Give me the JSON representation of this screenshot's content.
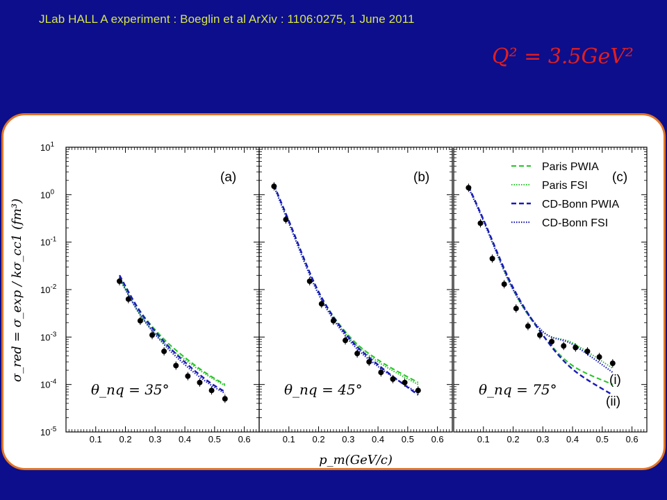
{
  "header": {
    "citation": "JLab HALL A experiment :  Boeglin et al  ArXiv : 1106:0275,    1  June  2011",
    "q2_label": "Q² = 3.5GeV²"
  },
  "colors": {
    "background": "#0c0e8c",
    "header_text": "#d7e64a",
    "q2_text": "#e21e1e",
    "card_border": "#e27427",
    "paris": "#22c322",
    "cdbonn": "#1a1ab8",
    "data": "#000000"
  },
  "chart_data": {
    "type": "scatter",
    "ylabel": "σ_red = σ_exp / kσ_cc1 (fm³)",
    "xlabel": "p_m(GeV/c)",
    "yscale": "log",
    "ylim": [
      1e-05,
      10
    ],
    "y_tick_labels": [
      "10^1",
      "10^0",
      "10^-1",
      "10^-2",
      "10^-3",
      "10^-4",
      "10^-5"
    ],
    "x_tick_labels": [
      "0.1",
      "0.2",
      "0.3",
      "0.4",
      "0.5",
      "0.6"
    ],
    "xlim": [
      0,
      0.65
    ],
    "legend": {
      "placement": "top-right",
      "entries": [
        "Paris PWIA",
        "Paris FSI",
        "CD-Bonn PWIA",
        "CD-Bonn FSI"
      ]
    },
    "panels": [
      {
        "id": "(a)",
        "theta_label": "θ_nq = 35°",
        "data_x": [
          0.18,
          0.21,
          0.25,
          0.29,
          0.33,
          0.37,
          0.41,
          0.45,
          0.49,
          0.535
        ],
        "data_y": [
          0.015,
          0.0063,
          0.0022,
          0.0011,
          0.0005,
          0.00025,
          0.00015,
          0.00011,
          7.5e-05,
          5e-05
        ],
        "curves": {
          "Paris PWIA": {
            "x": [
              0.18,
              0.25,
              0.33,
              0.41,
              0.48,
              0.535
            ],
            "y": [
              0.02,
              0.0035,
              0.0009,
              0.00033,
              0.00016,
              0.0001
            ]
          },
          "Paris FSI": {
            "x": [
              0.18,
              0.25,
              0.33,
              0.41,
              0.48,
              0.535
            ],
            "y": [
              0.018,
              0.003,
              0.00075,
              0.0003,
              0.00015,
              9.5e-05
            ]
          },
          "CD-Bonn PWIA": {
            "x": [
              0.18,
              0.25,
              0.33,
              0.41,
              0.48,
              0.535
            ],
            "y": [
              0.02,
              0.0034,
              0.0008,
              0.00026,
              0.000115,
              7e-05
            ]
          },
          "CD-Bonn FSI": {
            "x": [
              0.18,
              0.25,
              0.33,
              0.41,
              0.48,
              0.535
            ],
            "y": [
              0.017,
              0.0029,
              0.0007,
              0.00023,
              0.000105,
              6.5e-05
            ]
          }
        }
      },
      {
        "id": "(b)",
        "theta_label": "θ_nq = 45°",
        "data_x": [
          0.05,
          0.09,
          0.17,
          0.21,
          0.25,
          0.29,
          0.33,
          0.37,
          0.41,
          0.45,
          0.49,
          0.535
        ],
        "data_y": [
          1.5,
          0.3,
          0.015,
          0.005,
          0.0022,
          0.00085,
          0.00045,
          0.0003,
          0.00018,
          0.00013,
          0.00011,
          7.5e-05
        ],
        "curves": {
          "Paris PWIA": {
            "x": [
              0.05,
              0.1,
              0.2,
              0.3,
              0.4,
              0.535
            ],
            "y": [
              1.6,
              0.28,
              0.009,
              0.0011,
              0.00033,
              0.00011
            ]
          },
          "Paris FSI": {
            "x": [
              0.05,
              0.1,
              0.2,
              0.3,
              0.4,
              0.535
            ],
            "y": [
              1.5,
              0.25,
              0.008,
              0.001,
              0.0003,
              0.0001
            ]
          },
          "CD-Bonn PWIA": {
            "x": [
              0.05,
              0.1,
              0.2,
              0.3,
              0.4,
              0.535
            ],
            "y": [
              1.6,
              0.28,
              0.009,
              0.001,
              0.00026,
              6e-05
            ]
          },
          "CD-Bonn FSI": {
            "x": [
              0.05,
              0.1,
              0.2,
              0.3,
              0.4,
              0.535
            ],
            "y": [
              1.5,
              0.25,
              0.008,
              0.0009,
              0.00024,
              6.5e-05
            ]
          }
        }
      },
      {
        "id": "(c)",
        "theta_label": "θ_nq = 75°",
        "curve_labels": [
          "(i)",
          "(ii)"
        ],
        "data_x": [
          0.05,
          0.09,
          0.13,
          0.17,
          0.21,
          0.25,
          0.29,
          0.33,
          0.37,
          0.41,
          0.45,
          0.49,
          0.535
        ],
        "data_y": [
          1.4,
          0.25,
          0.045,
          0.013,
          0.004,
          0.0017,
          0.0011,
          0.0008,
          0.00065,
          0.0006,
          0.0005,
          0.00038,
          0.00028
        ],
        "curves": {
          "Paris PWIA": {
            "x": [
              0.05,
              0.1,
              0.2,
              0.3,
              0.4,
              0.535
            ],
            "y": [
              1.5,
              0.3,
              0.01,
              0.0011,
              0.00025,
              0.0001
            ]
          },
          "Paris FSI": {
            "x": [
              0.05,
              0.1,
              0.2,
              0.3,
              0.4,
              0.535
            ],
            "y": [
              1.4,
              0.28,
              0.01,
              0.0013,
              0.00075,
              0.00022
            ]
          },
          "CD-Bonn PWIA": {
            "x": [
              0.05,
              0.1,
              0.2,
              0.3,
              0.4,
              0.535
            ],
            "y": [
              1.5,
              0.3,
              0.011,
              0.0011,
              0.00021,
              6e-05
            ]
          },
          "CD-Bonn FSI": {
            "x": [
              0.05,
              0.1,
              0.2,
              0.3,
              0.4,
              0.535
            ],
            "y": [
              1.4,
              0.28,
              0.01,
              0.0013,
              0.0007,
              0.00018
            ]
          }
        }
      }
    ]
  }
}
